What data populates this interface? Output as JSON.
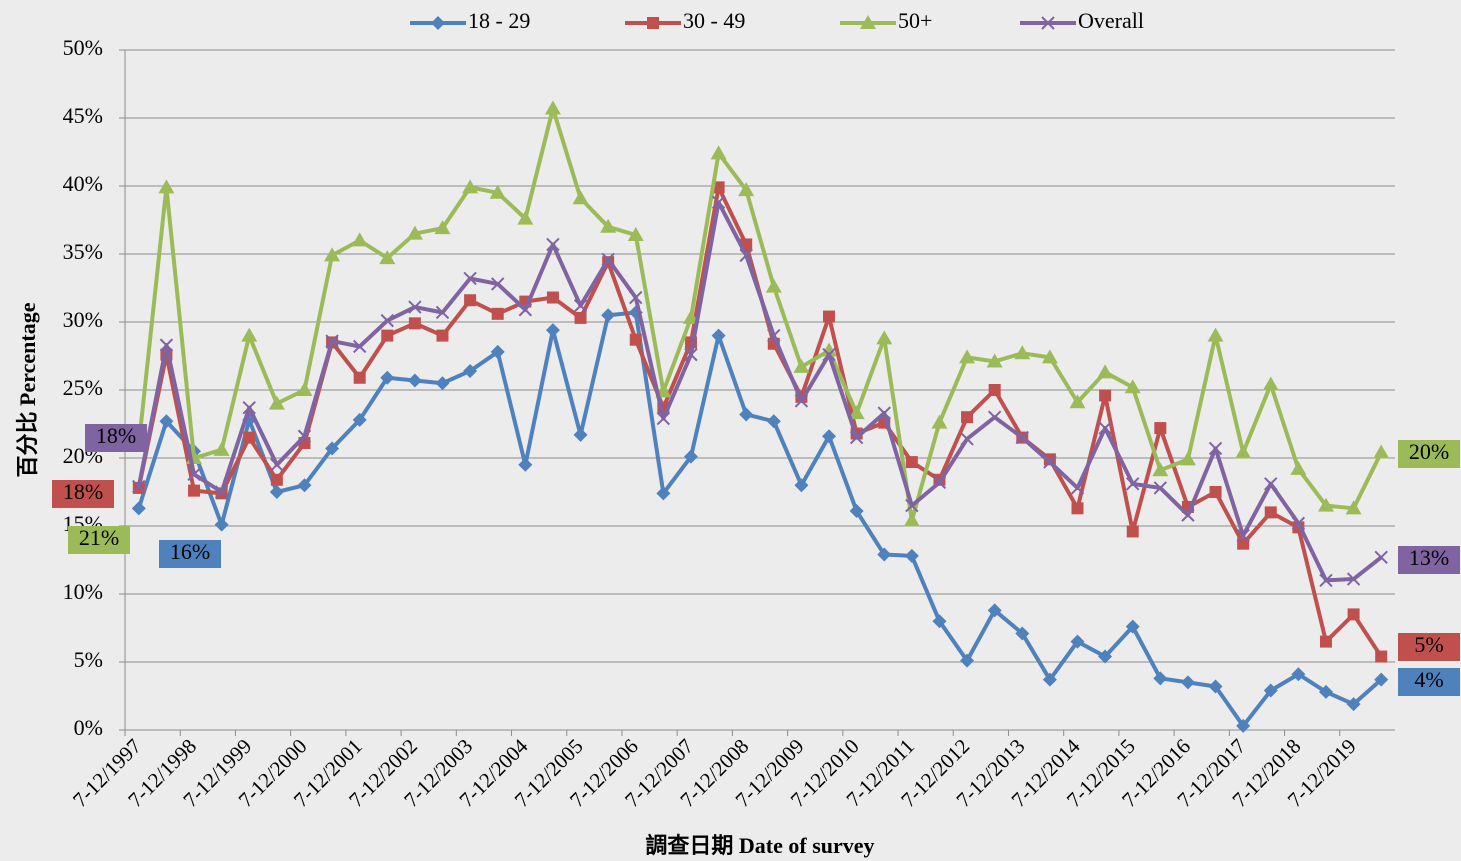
{
  "chart_data": {
    "type": "line",
    "x_label": "調查日期 Date of survey",
    "y_label": "百分比 Percentage",
    "categories": [
      "7-12/1997",
      null,
      "7-12/1998",
      null,
      "7-12/1999",
      null,
      "7-12/2000",
      null,
      "7-12/2001",
      null,
      "7-12/2002",
      null,
      "7-12/2003",
      null,
      "7-12/2004",
      null,
      "7-12/2005",
      null,
      "7-12/2006",
      null,
      "7-12/2007",
      null,
      "7-12/2008",
      null,
      "7-12/2009",
      null,
      "7-12/2010",
      null,
      "7-12/2011",
      null,
      "7-12/2012",
      null,
      "7-12/2013",
      null,
      "7-12/2014",
      null,
      "7-12/2015",
      null,
      "7-12/2016",
      null,
      "7-12/2017",
      null,
      "7-12/2018",
      null,
      "7-12/2019",
      null
    ],
    "series": [
      {
        "name": "18 - 29",
        "color": "#4f81bd",
        "marker": "diamond",
        "values": [
          16.3,
          22.7,
          20.5,
          15.1,
          22.8,
          17.5,
          18.0,
          20.7,
          22.8,
          25.9,
          25.7,
          25.5,
          26.4,
          27.8,
          19.5,
          29.4,
          21.7,
          30.5,
          30.7,
          17.4,
          20.1,
          29.0,
          23.2,
          22.7,
          18.0,
          21.6,
          16.1,
          12.9,
          12.8,
          8.0,
          5.1,
          8.8,
          7.1,
          3.7,
          6.5,
          5.4,
          7.6,
          3.8,
          3.5,
          3.2,
          0.3,
          2.9,
          4.1,
          2.8,
          1.9,
          3.7
        ],
        "value_labels": [
          "16%",
          null,
          null,
          null,
          null,
          null,
          null,
          null,
          null,
          null,
          null,
          null,
          null,
          null,
          null,
          null,
          null,
          null,
          null,
          null,
          null,
          null,
          null,
          null,
          null,
          null,
          null,
          null,
          null,
          null,
          null,
          null,
          null,
          null,
          null,
          null,
          null,
          null,
          null,
          null,
          null,
          null,
          null,
          null,
          null,
          "4%"
        ]
      },
      {
        "name": "30 - 49",
        "color": "#c0504d",
        "marker": "square",
        "values": [
          17.8,
          27.6,
          17.6,
          17.4,
          21.5,
          18.4,
          21.1,
          28.5,
          25.9,
          29.0,
          29.9,
          29.0,
          31.6,
          30.6,
          31.5,
          31.8,
          30.3,
          34.4,
          28.7,
          23.7,
          28.5,
          39.9,
          35.7,
          28.4,
          24.5,
          30.4,
          21.8,
          22.6,
          19.7,
          18.4,
          23.0,
          25.0,
          21.5,
          19.9,
          16.3,
          24.6,
          14.6,
          22.2,
          16.4,
          17.5,
          13.7,
          16.0,
          14.9,
          6.5,
          8.5,
          5.4
        ],
        "value_labels": [
          "18%",
          null,
          null,
          null,
          null,
          null,
          null,
          null,
          null,
          null,
          null,
          null,
          null,
          null,
          null,
          null,
          null,
          null,
          null,
          null,
          null,
          null,
          null,
          null,
          null,
          null,
          null,
          null,
          null,
          null,
          null,
          null,
          null,
          null,
          null,
          null,
          null,
          null,
          null,
          null,
          null,
          null,
          null,
          null,
          null,
          "5%"
        ]
      },
      {
        "name": "50+",
        "color": "#9bbb59",
        "marker": "triangle",
        "values": [
          21.0,
          39.9,
          20.0,
          20.6,
          29.0,
          24.0,
          25.0,
          34.9,
          36.0,
          34.7,
          36.5,
          36.9,
          39.9,
          39.5,
          37.6,
          45.7,
          39.1,
          37.0,
          36.4,
          24.9,
          30.3,
          42.4,
          39.7,
          32.6,
          26.7,
          27.9,
          23.3,
          28.8,
          15.4,
          22.6,
          27.4,
          27.1,
          27.7,
          27.4,
          24.1,
          26.3,
          25.2,
          19.1,
          19.9,
          29.0,
          20.4,
          25.4,
          19.2,
          16.5,
          16.3,
          20.4
        ],
        "value_labels": [
          "21%",
          null,
          null,
          null,
          null,
          null,
          null,
          null,
          null,
          null,
          null,
          null,
          null,
          null,
          null,
          null,
          null,
          null,
          null,
          null,
          null,
          null,
          null,
          null,
          null,
          null,
          null,
          null,
          null,
          null,
          null,
          null,
          null,
          null,
          null,
          null,
          null,
          null,
          null,
          null,
          null,
          null,
          null,
          null,
          null,
          "20%"
        ]
      },
      {
        "name": "Overall",
        "color": "#8064a2",
        "marker": "x",
        "values": [
          17.9,
          28.3,
          18.8,
          17.5,
          23.7,
          19.5,
          21.6,
          28.6,
          28.2,
          30.1,
          31.1,
          30.7,
          33.2,
          32.8,
          30.9,
          35.7,
          31.2,
          34.6,
          31.8,
          22.9,
          27.6,
          38.8,
          34.9,
          29.0,
          24.2,
          27.6,
          21.5,
          23.3,
          16.5,
          18.2,
          21.4,
          23.0,
          21.5,
          19.7,
          17.8,
          22.2,
          18.1,
          17.8,
          15.8,
          20.7,
          14.3,
          18.1,
          15.2,
          11.0,
          11.1,
          12.7
        ],
        "value_labels": [
          "18%",
          null,
          null,
          null,
          null,
          null,
          null,
          null,
          null,
          null,
          null,
          null,
          null,
          null,
          null,
          null,
          null,
          null,
          null,
          null,
          null,
          null,
          null,
          null,
          null,
          null,
          null,
          null,
          null,
          null,
          null,
          null,
          null,
          null,
          null,
          null,
          null,
          null,
          null,
          null,
          null,
          null,
          null,
          null,
          null,
          "13%"
        ]
      }
    ],
    "ylim": [
      0,
      50
    ],
    "yticks": [
      {
        "value": 0,
        "label": "0%"
      },
      {
        "value": 5,
        "label": "5%"
      },
      {
        "value": 10,
        "label": "10%"
      },
      {
        "value": 15,
        "label": "15%"
      },
      {
        "value": 20,
        "label": "20%"
      },
      {
        "value": 25,
        "label": "25%"
      },
      {
        "value": 30,
        "label": "30%"
      },
      {
        "value": 35,
        "label": "35%"
      },
      {
        "value": 40,
        "label": "40%"
      },
      {
        "value": 45,
        "label": "45%"
      },
      {
        "value": 50,
        "label": "50%"
      }
    ],
    "grid": true,
    "legend": "top"
  }
}
